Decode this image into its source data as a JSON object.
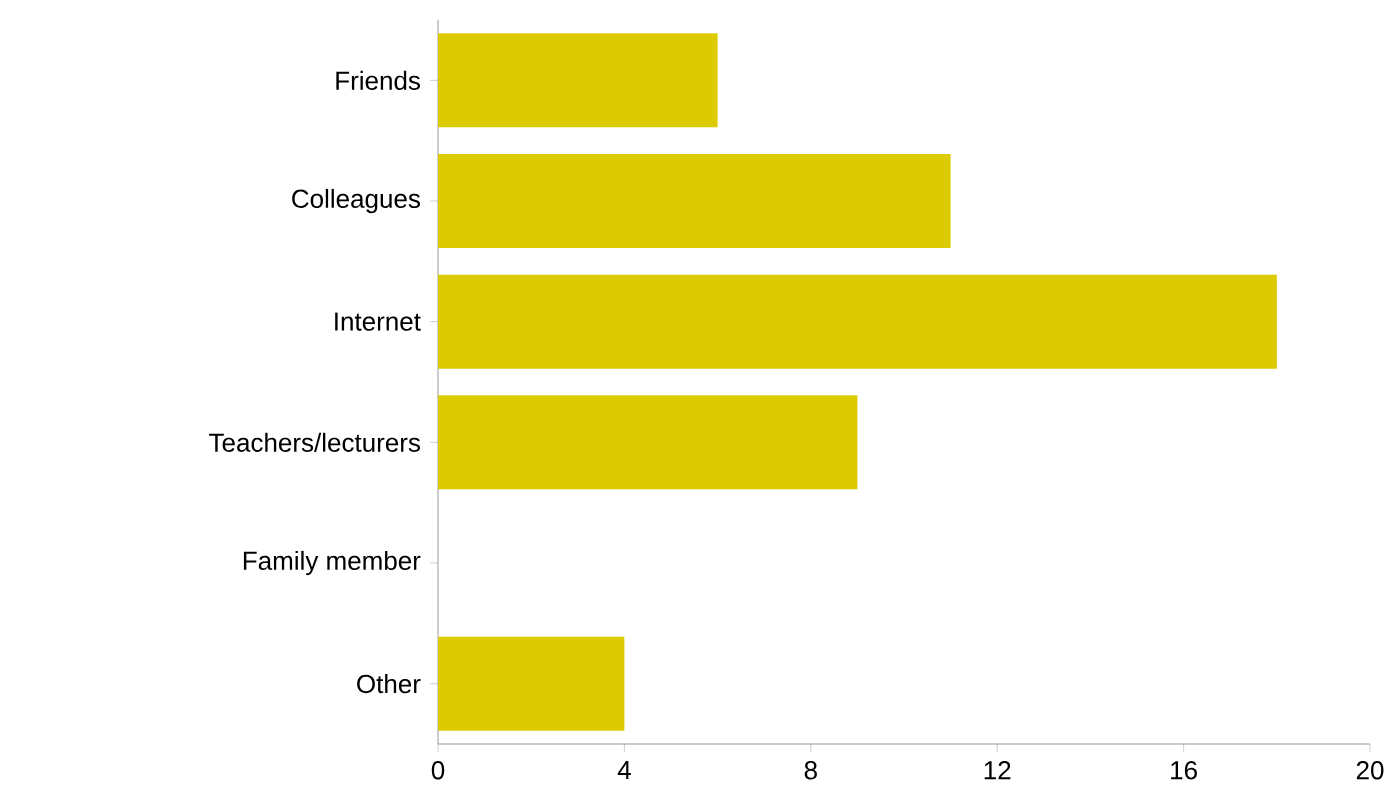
{
  "chart_data": {
    "type": "bar",
    "orientation": "horizontal",
    "categories": [
      "Friends",
      "Colleagues",
      "Internet",
      "Teachers/lecturers",
      "Family member",
      "Other"
    ],
    "values": [
      6,
      11,
      18,
      9,
      0,
      4
    ],
    "color": "#dccb00",
    "xlim": [
      0,
      20
    ],
    "xticks": [
      0,
      4,
      8,
      12,
      16,
      20
    ]
  }
}
